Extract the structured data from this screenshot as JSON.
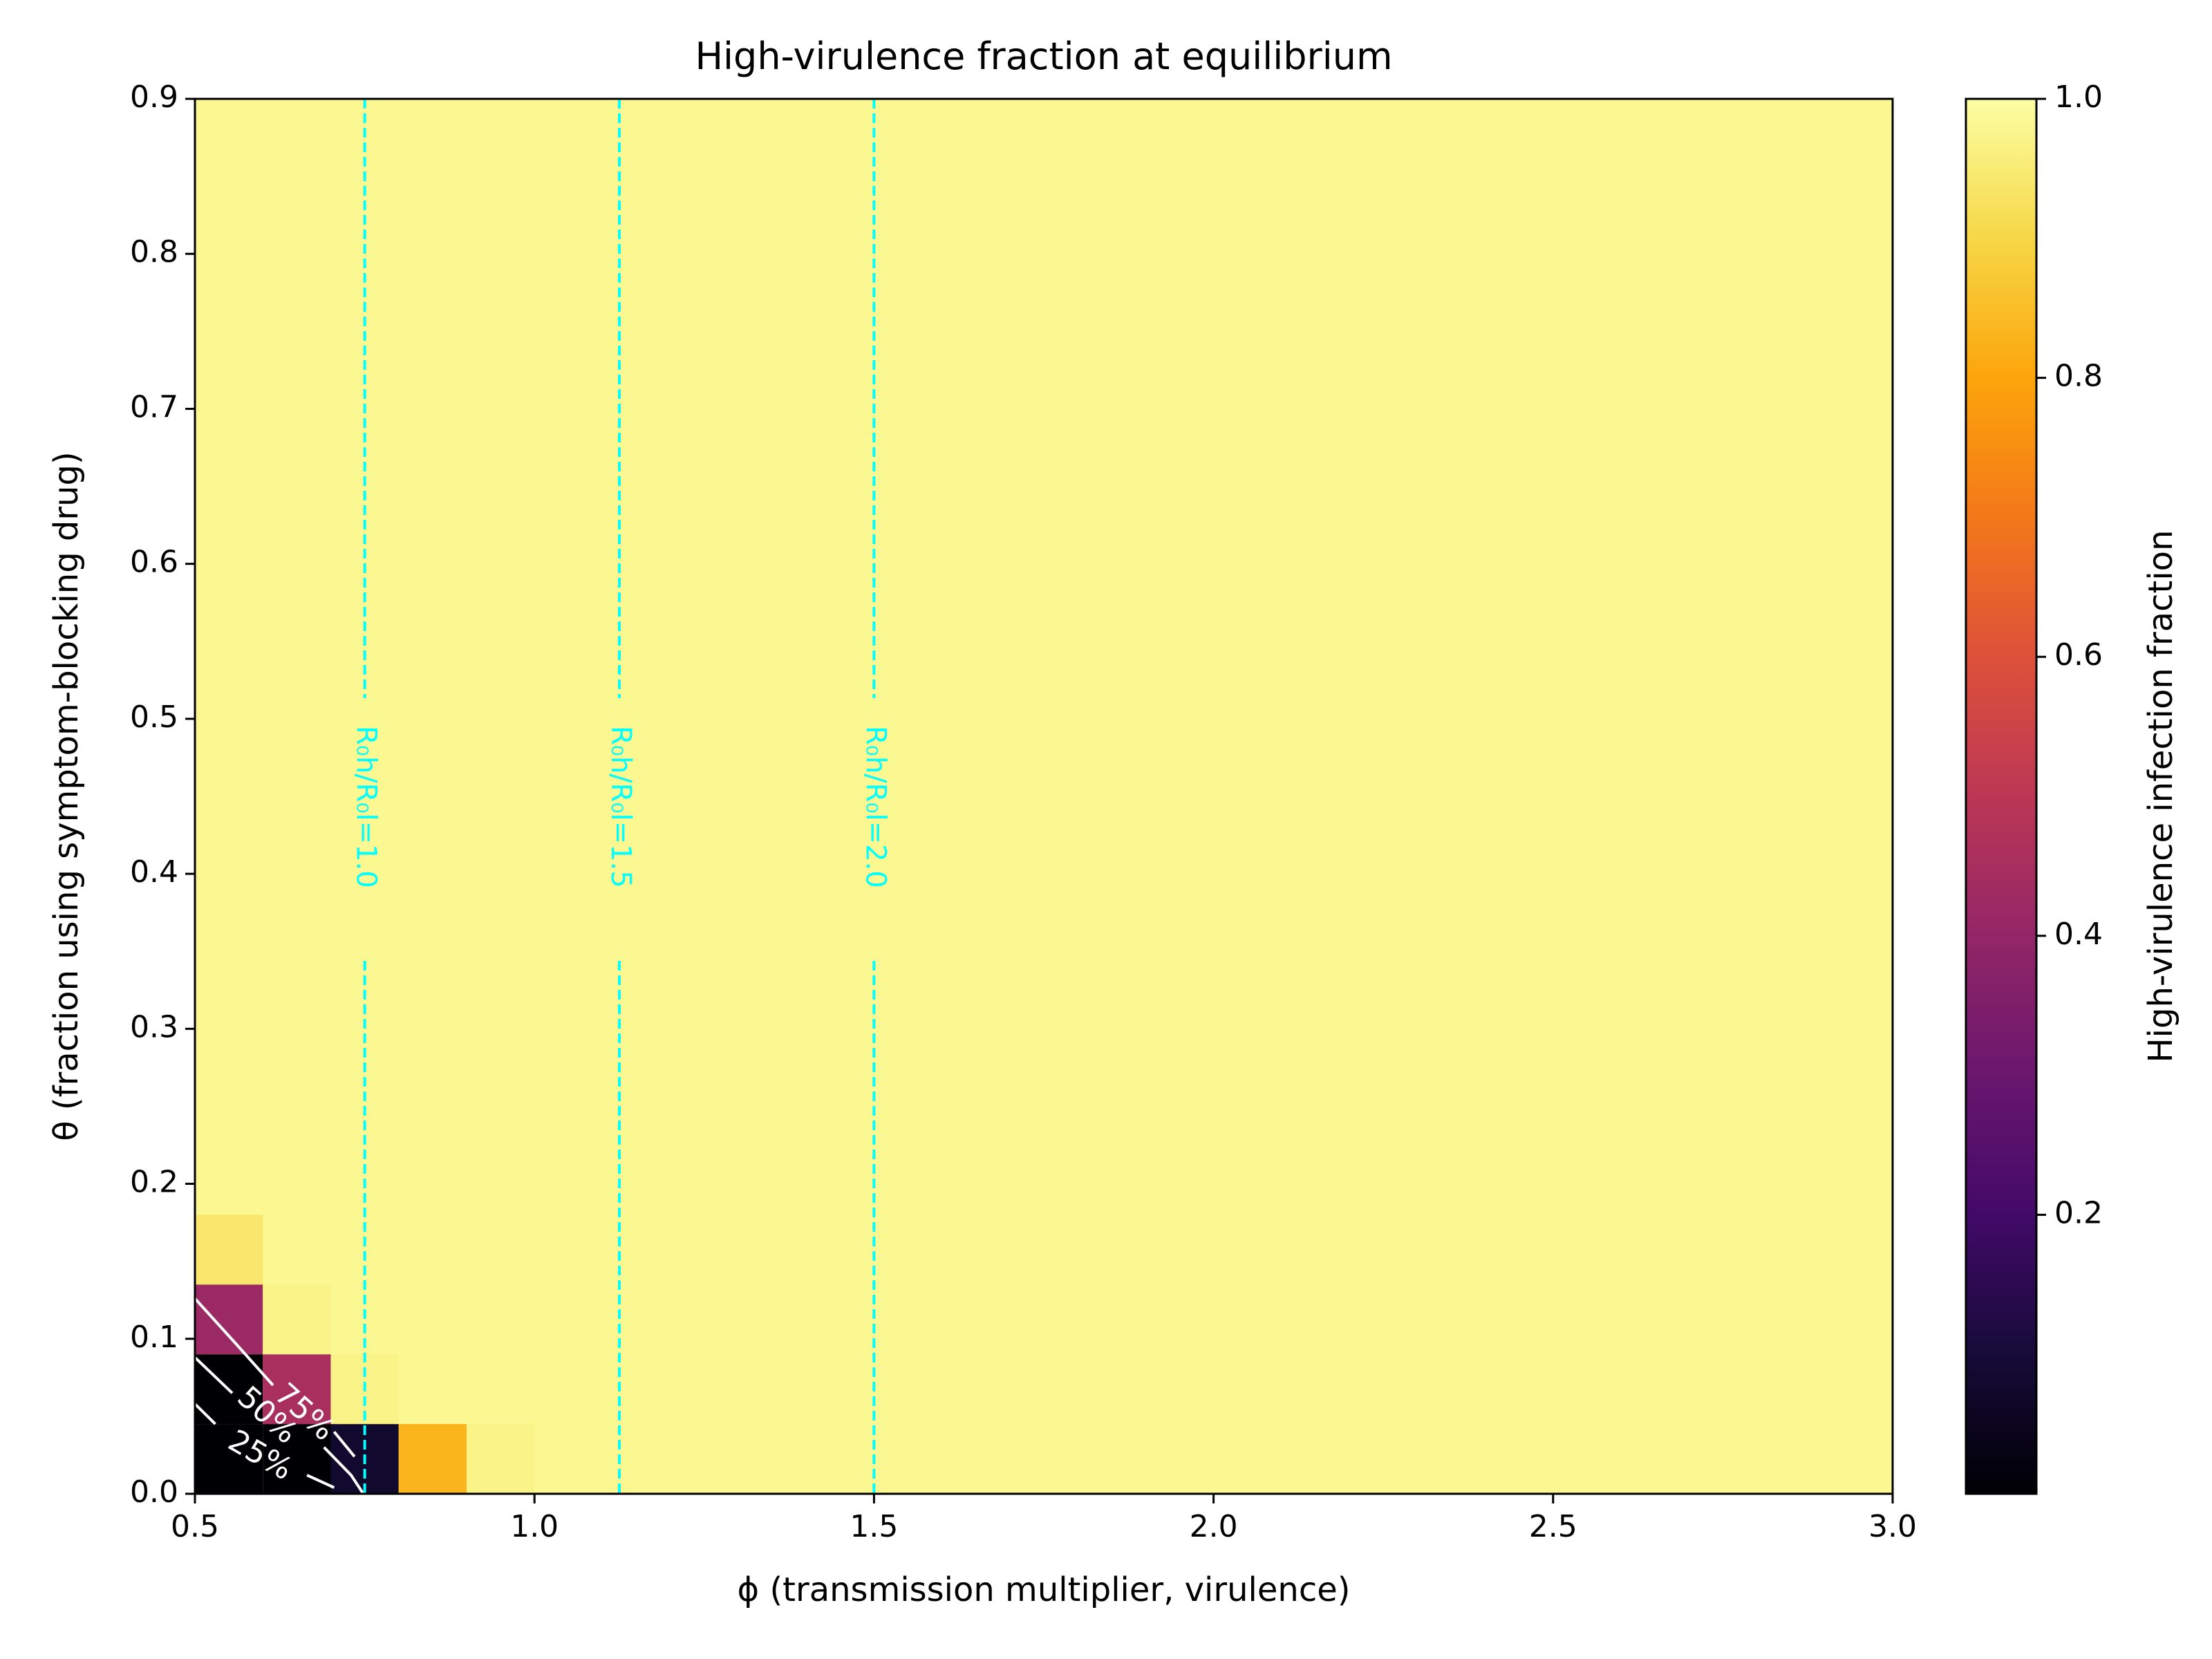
{
  "chart_data": {
    "type": "heatmap",
    "title": "High-virulence fraction at equilibrium",
    "xlabel": "ϕ (transmission multiplier, virulence)",
    "ylabel": "θ (fraction using symptom-blocking drug)",
    "xlim": [
      0.5,
      3.0
    ],
    "ylim": [
      0.0,
      0.9
    ],
    "x_ticks": [
      "0.5",
      "1.0",
      "1.5",
      "2.0",
      "2.5",
      "3.0"
    ],
    "y_ticks": [
      "0.0",
      "0.1",
      "0.2",
      "0.3",
      "0.4",
      "0.5",
      "0.6",
      "0.7",
      "0.8",
      "0.9"
    ],
    "colormap": "inferno",
    "background_value": 0.98,
    "cells": [
      {
        "x": [
          0.5,
          0.6
        ],
        "y": [
          0.0,
          0.045
        ],
        "value": 0.0
      },
      {
        "x": [
          0.6,
          0.7
        ],
        "y": [
          0.0,
          0.045
        ],
        "value": 0.0
      },
      {
        "x": [
          0.7,
          0.8
        ],
        "y": [
          0.0,
          0.045
        ],
        "value": 0.08
      },
      {
        "x": [
          0.8,
          0.9
        ],
        "y": [
          0.0,
          0.045
        ],
        "value": 0.83
      },
      {
        "x": [
          0.9,
          1.0
        ],
        "y": [
          0.0,
          0.045
        ],
        "value": 0.97
      },
      {
        "x": [
          0.5,
          0.6
        ],
        "y": [
          0.045,
          0.09
        ],
        "value": 0.0
      },
      {
        "x": [
          0.6,
          0.7
        ],
        "y": [
          0.045,
          0.09
        ],
        "value": 0.45
      },
      {
        "x": [
          0.7,
          0.8
        ],
        "y": [
          0.045,
          0.09
        ],
        "value": 0.97
      },
      {
        "x": [
          0.5,
          0.6
        ],
        "y": [
          0.09,
          0.135
        ],
        "value": 0.42
      },
      {
        "x": [
          0.6,
          0.7
        ],
        "y": [
          0.09,
          0.135
        ],
        "value": 0.97
      },
      {
        "x": [
          0.5,
          0.6
        ],
        "y": [
          0.135,
          0.18
        ],
        "value": 0.94
      }
    ],
    "contours": [
      {
        "label": "25%",
        "level": 0.25
      },
      {
        "label": "50%",
        "level": 0.5
      },
      {
        "label": "75%",
        "level": 0.75
      }
    ],
    "reference_lines": [
      {
        "x": 0.75,
        "label": "R₀h/R₀l=1.0",
        "color": "#00ffff"
      },
      {
        "x": 1.125,
        "label": "R₀h/R₀l=1.5",
        "color": "#00ffff"
      },
      {
        "x": 1.5,
        "label": "R₀h/R₀l=2.0",
        "color": "#00ffff"
      }
    ],
    "colorbar": {
      "label": "High-virulence infection fraction",
      "ticks": [
        "0.2",
        "0.4",
        "0.6",
        "0.8",
        "1.0"
      ],
      "range": [
        0.0,
        1.0
      ]
    }
  }
}
